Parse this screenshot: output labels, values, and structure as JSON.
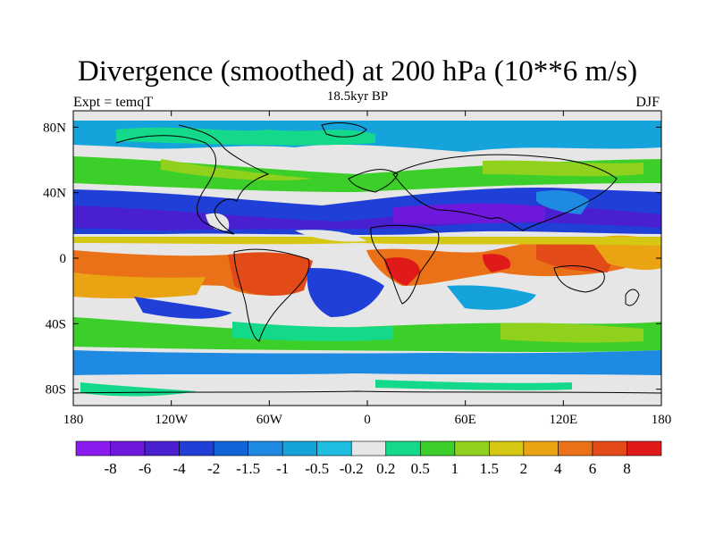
{
  "chart_data": {
    "type": "heatmap",
    "title": "Divergence (smoothed) at 200 hPa (10**6 m/s)",
    "subtitle": "18.5kyr BP",
    "left_label": "Expt = temqT",
    "right_label": "DJF",
    "x_ticks": [
      "180",
      "120W",
      "60W",
      "0",
      "60E",
      "120E",
      "180"
    ],
    "x_values": [
      -180,
      -120,
      -60,
      0,
      60,
      120,
      180
    ],
    "y_ticks": [
      "80N",
      "40N",
      "0",
      "40S",
      "80S"
    ],
    "y_values": [
      80,
      40,
      0,
      -40,
      -80
    ],
    "xlim": [
      -180,
      180
    ],
    "ylim": [
      -90,
      90
    ],
    "colorbar_labels": [
      "-8",
      "-6",
      "-4",
      "-2",
      "-1.5",
      "-1",
      "-0.5",
      "-0.2",
      "0.2",
      "0.5",
      "1",
      "1.5",
      "2",
      "4",
      "6",
      "8"
    ],
    "colorbar_colors": [
      "#8a1cf0",
      "#6e18dc",
      "#4a1fcf",
      "#1f3fd6",
      "#0e64d8",
      "#1e8ae2",
      "#15a3dc",
      "#1fbde0",
      "#e6e6e6",
      "#14d98a",
      "#3ccf2a",
      "#8fd11c",
      "#d6c812",
      "#e9a313",
      "#ea7117",
      "#e24a18",
      "#e01919"
    ]
  },
  "colors": {
    "background": "#ffffff",
    "continents": "#000000"
  }
}
